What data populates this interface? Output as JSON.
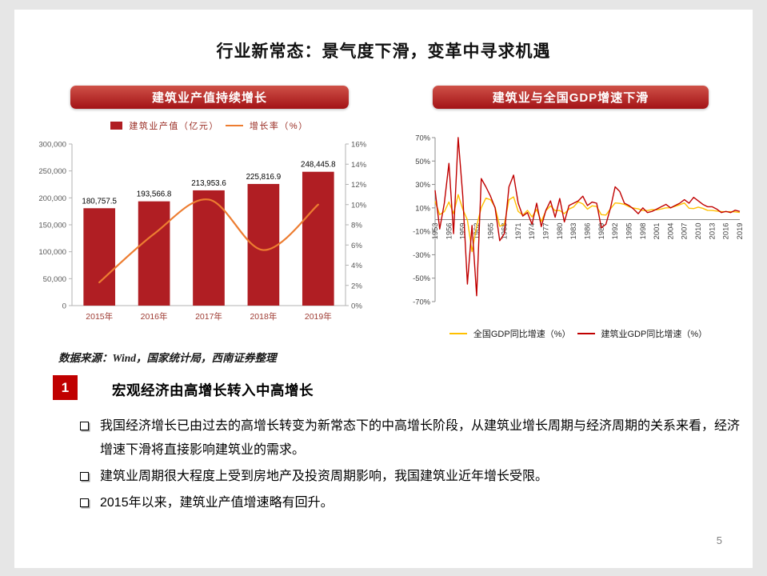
{
  "title": "行业新常态：景气度下滑，变革中寻求机遇",
  "page_number": "5",
  "source_note": "数据来源：Wind，国家统计局，西南证券整理",
  "panels": {
    "left": {
      "header": "建筑业产值持续增长"
    },
    "right": {
      "header": "建筑业与全国GDP增速下滑"
    }
  },
  "section": {
    "number": "1",
    "heading": "宏观经济由高增长转入中高增长",
    "bullets": [
      "我国经济增长已由过去的高增长转变为新常态下的中高增长阶段，从建筑业增长周期与经济周期的关系来看，经济增速下滑将直接影响建筑业的需求。",
      "建筑业周期很大程度上受到房地产及投资周期影响，我国建筑业近年增长受限。",
      "2015年以来，建筑业产值增速略有回升。"
    ]
  },
  "colors": {
    "banner_top": "#cf5148",
    "banner_bottom": "#a31316",
    "bar_red": "#b01e23",
    "line_orange": "#ed7d31",
    "gdp_yellow": "#ffc000",
    "constr_red": "#c00000",
    "badge_red": "#c00000",
    "legend_maroon": "#9a2d24",
    "xlab_red": "#9e3b33"
  },
  "chart_data": [
    {
      "type": "bar",
      "title": "建筑业产值持续增长",
      "legend_position": "top",
      "grid": false,
      "categories": [
        "2015年",
        "2016年",
        "2017年",
        "2018年",
        "2019年"
      ],
      "series": [
        {
          "name": "建筑业产值（亿元）",
          "type": "bar",
          "axis": "left",
          "color": "#b01e23",
          "values": [
            180757.5,
            193566.8,
            213953.6,
            225816.9,
            248445.8
          ]
        },
        {
          "name": "增长率（%）",
          "type": "line",
          "axis": "right",
          "color": "#ed7d31",
          "values": [
            2.3,
            7.1,
            10.5,
            5.5,
            10.0
          ]
        }
      ],
      "bar_labels": [
        "180,757.5",
        "193,566.8",
        "213,953.6",
        "225,816.9",
        "248,445.8"
      ],
      "left_axis": {
        "min": 0,
        "max": 300000,
        "step": 50000,
        "tick_labels": [
          "0",
          "50,000",
          "100,000",
          "150,000",
          "200,000",
          "250,000",
          "300,000"
        ]
      },
      "right_axis": {
        "min": 0,
        "max": 16,
        "step": 2,
        "tick_labels": [
          "0%",
          "2%",
          "4%",
          "6%",
          "8%",
          "10%",
          "12%",
          "14%",
          "16%"
        ]
      }
    },
    {
      "type": "line",
      "title": "建筑业与全国GDP增速下滑",
      "legend_position": "bottom",
      "grid": false,
      "x": [
        1953,
        1954,
        1955,
        1956,
        1957,
        1958,
        1959,
        1960,
        1961,
        1962,
        1963,
        1964,
        1965,
        1966,
        1967,
        1968,
        1969,
        1970,
        1971,
        1972,
        1973,
        1974,
        1975,
        1976,
        1977,
        1978,
        1979,
        1980,
        1981,
        1982,
        1983,
        1984,
        1985,
        1986,
        1987,
        1988,
        1989,
        1990,
        1991,
        1992,
        1993,
        1994,
        1995,
        1996,
        1997,
        1998,
        1999,
        2000,
        2001,
        2002,
        2003,
        2004,
        2005,
        2006,
        2007,
        2008,
        2009,
        2010,
        2011,
        2012,
        2013,
        2014,
        2015,
        2016,
        2017,
        2018,
        2019
      ],
      "x_tick_labels": [
        "1953",
        "1956",
        "1959",
        "1962",
        "1965",
        "1968",
        "1971",
        "1974",
        "1977",
        "1980",
        "1983",
        "1986",
        "1989",
        "1992",
        "1995",
        "1998",
        "2001",
        "2004",
        "2007",
        "2010",
        "2013",
        "2016",
        "2019"
      ],
      "y_axis": {
        "min": -70,
        "max": 70,
        "step": 20,
        "tick_labels": [
          "70%",
          "50%",
          "30%",
          "10%",
          "-10%",
          "-30%",
          "-50%",
          "-70%"
        ]
      },
      "series": [
        {
          "name": "全国GDP同比增速（%）",
          "color": "#ffc000",
          "values": [
            15.6,
            4.2,
            6.8,
            15.0,
            5.1,
            21.3,
            8.8,
            -0.3,
            -27.3,
            -5.6,
            10.2,
            18.3,
            17.0,
            10.7,
            -5.7,
            -4.1,
            16.9,
            19.4,
            7.0,
            3.8,
            7.9,
            2.3,
            8.7,
            -1.6,
            7.6,
            11.7,
            7.6,
            7.8,
            5.1,
            9.0,
            10.8,
            15.2,
            13.4,
            8.9,
            11.7,
            11.2,
            4.2,
            3.9,
            9.3,
            14.2,
            13.9,
            13.0,
            11.0,
            9.9,
            9.2,
            7.8,
            7.7,
            8.5,
            8.3,
            9.1,
            10.0,
            10.1,
            11.4,
            12.7,
            14.2,
            9.7,
            9.4,
            10.6,
            9.6,
            7.9,
            7.8,
            7.3,
            6.9,
            6.7,
            6.8,
            6.6,
            6.1
          ]
        },
        {
          "name": "建筑业GDP同比增速（%）",
          "color": "#c00000",
          "values": [
            25,
            -8,
            14,
            48,
            -12,
            70,
            20,
            -55,
            -5,
            -65,
            35,
            28,
            20,
            10,
            -18,
            -12,
            28,
            38,
            14,
            3,
            6,
            -4,
            14,
            -6,
            8,
            16,
            2,
            18,
            -2,
            12,
            14,
            16,
            20,
            12,
            15,
            14,
            -7,
            -4,
            10,
            28,
            24,
            14,
            12,
            9,
            5,
            10,
            6,
            7,
            9,
            11,
            13,
            10,
            12,
            14,
            17,
            14,
            19,
            16,
            13,
            11,
            11,
            9,
            6,
            7,
            6,
            8,
            7
          ]
        }
      ]
    }
  ]
}
